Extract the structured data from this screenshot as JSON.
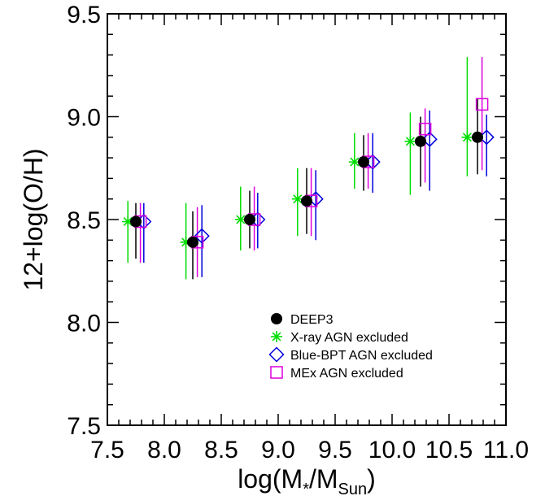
{
  "chart_data": {
    "type": "scatter",
    "xlabel": {
      "prefix": "log(M",
      "sub1": "*",
      "mid": "/M",
      "sub2": "Sun",
      "suffix": ")"
    },
    "ylabel": "12+log(O/H)",
    "xlim": [
      7.5,
      11.0
    ],
    "ylim": [
      7.5,
      9.5
    ],
    "xticks": [
      "7.5",
      "8.0",
      "8.5",
      "9.0",
      "9.5",
      "10.0",
      "10.5",
      "11.0"
    ],
    "yticks": [
      "7.5",
      "8.0",
      "8.5",
      "9.0",
      "9.5"
    ],
    "grid": false,
    "legend_position": "bottom-right",
    "series": [
      {
        "name": "DEEP3",
        "marker": "filled-circle",
        "color": "#000000",
        "x": [
          7.75,
          8.25,
          8.75,
          9.25,
          9.75,
          10.25,
          10.75
        ],
        "y": [
          8.49,
          8.39,
          8.5,
          8.59,
          8.78,
          8.88,
          8.9
        ],
        "ylow": [
          8.31,
          8.21,
          8.36,
          8.43,
          8.64,
          8.66,
          8.72
        ],
        "yhigh": [
          8.58,
          8.54,
          8.64,
          8.75,
          8.91,
          9.0,
          9.09
        ]
      },
      {
        "name": "X-ray AGN excluded",
        "marker": "asterisk",
        "color": "#00dd00",
        "x": [
          7.68,
          8.19,
          8.67,
          9.17,
          9.67,
          10.16,
          10.66
        ],
        "y": [
          8.49,
          8.39,
          8.5,
          8.6,
          8.78,
          8.88,
          8.9
        ],
        "ylow": [
          8.29,
          8.21,
          8.35,
          8.42,
          8.65,
          8.62,
          8.71
        ],
        "yhigh": [
          8.59,
          8.58,
          8.66,
          8.75,
          8.92,
          9.02,
          9.29
        ]
      },
      {
        "name": "Blue-BPT AGN excluded",
        "marker": "open-diamond",
        "color": "#0000dd",
        "x": [
          7.82,
          8.33,
          8.82,
          9.33,
          9.83,
          10.33,
          10.83
        ],
        "y": [
          8.49,
          8.42,
          8.5,
          8.6,
          8.78,
          8.89,
          8.9
        ],
        "ylow": [
          8.29,
          8.22,
          8.36,
          8.4,
          8.63,
          8.64,
          8.71
        ],
        "yhigh": [
          8.58,
          8.57,
          8.63,
          8.74,
          8.92,
          9.03,
          9.01
        ]
      },
      {
        "name": "MEx AGN excluded",
        "marker": "open-square",
        "color": "#dd00dd",
        "x": [
          7.79,
          8.29,
          8.79,
          9.29,
          9.79,
          10.29,
          10.79
        ],
        "y": [
          8.49,
          8.39,
          8.5,
          8.59,
          8.78,
          8.94,
          9.06
        ],
        "ylow": [
          8.29,
          8.22,
          8.35,
          8.42,
          8.65,
          8.68,
          8.74
        ],
        "yhigh": [
          8.58,
          8.56,
          8.66,
          8.75,
          8.92,
          9.04,
          9.29
        ]
      }
    ]
  }
}
